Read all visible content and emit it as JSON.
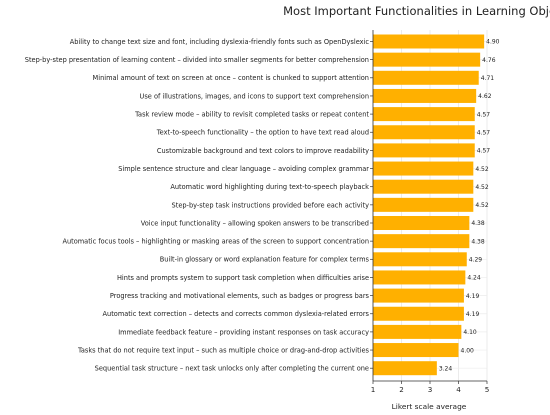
{
  "chart_data": {
    "type": "bar",
    "orientation": "horizontal",
    "title": "Most Important Functionalities in Learning Objects",
    "xlabel": "Likert scale average",
    "ylabel": "",
    "xlim": [
      1,
      5
    ],
    "xticks": [
      "1",
      "2",
      "3",
      "4",
      "5"
    ],
    "grid": true,
    "bar_color": "#FFB000",
    "categories": [
      "Ability to change text size and font, including dyslexia-friendly fonts such as OpenDyslexic",
      "Step-by-step presentation of learning content – divided into smaller segments for better comprehension",
      "Minimal amount of text on screen at once – content is chunked to support attention",
      "Use of illustrations, images, and icons to support text comprehension",
      "Task review mode – ability to revisit completed tasks or repeat content",
      "Text-to-speech functionality – the option to have text read aloud",
      "Customizable background and text colors to improve readability",
      "Simple sentence structure and clear language – avoiding complex grammar",
      "Automatic word highlighting during text-to-speech playback",
      "Step-by-step task instructions provided before each activity",
      "Voice input functionality – allowing spoken answers to be transcribed",
      "Automatic focus tools – highlighting or masking areas of the screen to support concentration",
      "Built-in glossary or word explanation feature for complex terms",
      "Hints and prompts system to support task completion when difficulties arise",
      "Progress tracking and motivational elements, such as badges or progress bars",
      "Automatic text correction – detects and corrects common dyslexia-related errors",
      "Immediate feedback feature – providing instant responses on task accuracy",
      "Tasks that do not require text input – such as multiple choice or drag-and-drop activities",
      "Sequential task structure – next task unlocks only after completing the current one"
    ],
    "values": [
      4.9,
      4.76,
      4.71,
      4.62,
      4.57,
      4.57,
      4.57,
      4.52,
      4.52,
      4.52,
      4.38,
      4.38,
      4.29,
      4.24,
      4.19,
      4.19,
      4.1,
      4.0,
      3.24
    ],
    "value_labels": [
      "4.90",
      "4.76",
      "4.71",
      "4.62",
      "4.57",
      "4.57",
      "4.57",
      "4.52",
      "4.52",
      "4.52",
      "4.38",
      "4.38",
      "4.29",
      "4.24",
      "4.19",
      "4.19",
      "4.10",
      "4.00",
      "3.24"
    ]
  }
}
